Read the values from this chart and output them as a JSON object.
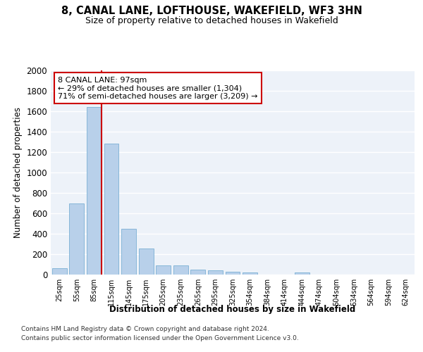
{
  "title": "8, CANAL LANE, LOFTHOUSE, WAKEFIELD, WF3 3HN",
  "subtitle": "Size of property relative to detached houses in Wakefield",
  "xlabel": "Distribution of detached houses by size in Wakefield",
  "ylabel": "Number of detached properties",
  "bar_color": "#b8d0ea",
  "bar_edge_color": "#7aafd4",
  "background_color": "#edf2f9",
  "grid_color": "#ffffff",
  "annotation_line_color": "#cc0000",
  "annotation_box_color": "#cc0000",
  "property_label": "8 CANAL LANE: 97sqm",
  "annotation_line1": "← 29% of detached houses are smaller (1,304)",
  "annotation_line2": "71% of semi-detached houses are larger (3,209) →",
  "categories": [
    "25sqm",
    "55sqm",
    "85sqm",
    "115sqm",
    "145sqm",
    "175sqm",
    "205sqm",
    "235sqm",
    "265sqm",
    "295sqm",
    "325sqm",
    "354sqm",
    "384sqm",
    "414sqm",
    "444sqm",
    "474sqm",
    "504sqm",
    "534sqm",
    "564sqm",
    "594sqm",
    "624sqm"
  ],
  "values": [
    65,
    695,
    1640,
    1285,
    445,
    255,
    90,
    90,
    50,
    40,
    30,
    20,
    0,
    0,
    20,
    0,
    0,
    0,
    0,
    0,
    0
  ],
  "ylim": [
    0,
    2000
  ],
  "yticks": [
    0,
    200,
    400,
    600,
    800,
    1000,
    1200,
    1400,
    1600,
    1800,
    2000
  ],
  "property_bar_index": 2,
  "footnote1": "Contains HM Land Registry data © Crown copyright and database right 2024.",
  "footnote2": "Contains public sector information licensed under the Open Government Licence v3.0."
}
